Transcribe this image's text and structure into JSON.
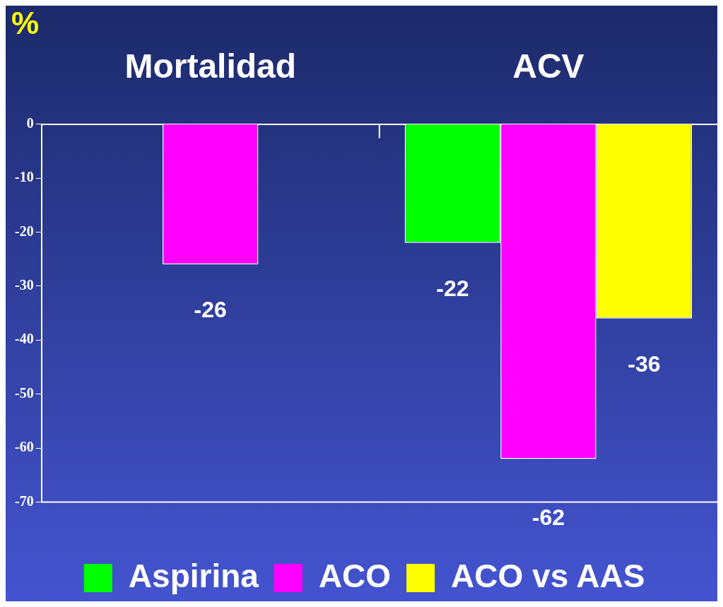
{
  "chart_data": {
    "type": "bar",
    "ylabel": "%",
    "categories": [
      "Mortalidad",
      "ACV"
    ],
    "series": [
      {
        "name": "Aspirina",
        "color": "#00ff00",
        "values": [
          null,
          -22
        ]
      },
      {
        "name": "ACO",
        "color": "#ff00ff",
        "values": [
          -26,
          -62
        ]
      },
      {
        "name": "ACO vs AAS",
        "color": "#ffff00",
        "values": [
          null,
          -36
        ]
      }
    ],
    "ylim": [
      -70,
      0
    ],
    "yticks": [
      0,
      -10,
      -20,
      -30,
      -40,
      -50,
      -60,
      -70
    ],
    "grid": false,
    "legend": "bottom",
    "data_labels": true
  }
}
